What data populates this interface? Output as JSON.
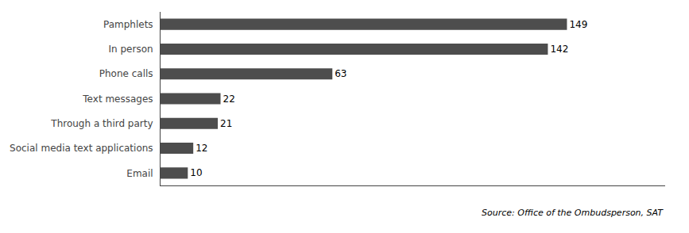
{
  "chart_data": {
    "type": "bar",
    "orientation": "horizontal",
    "categories": [
      "Email",
      "Social media text applications",
      "Through a third party",
      "Text messages",
      "Phone calls",
      "In person",
      "Pamphlets"
    ],
    "values": [
      10,
      12,
      21,
      22,
      63,
      142,
      149
    ],
    "color": "#4d4d4d",
    "xlim": [
      0,
      185
    ],
    "data_labels": true,
    "tick_labels": "y",
    "grid": false,
    "annotations": [
      "Source: Office of the Ombudsperson, SAT"
    ]
  }
}
